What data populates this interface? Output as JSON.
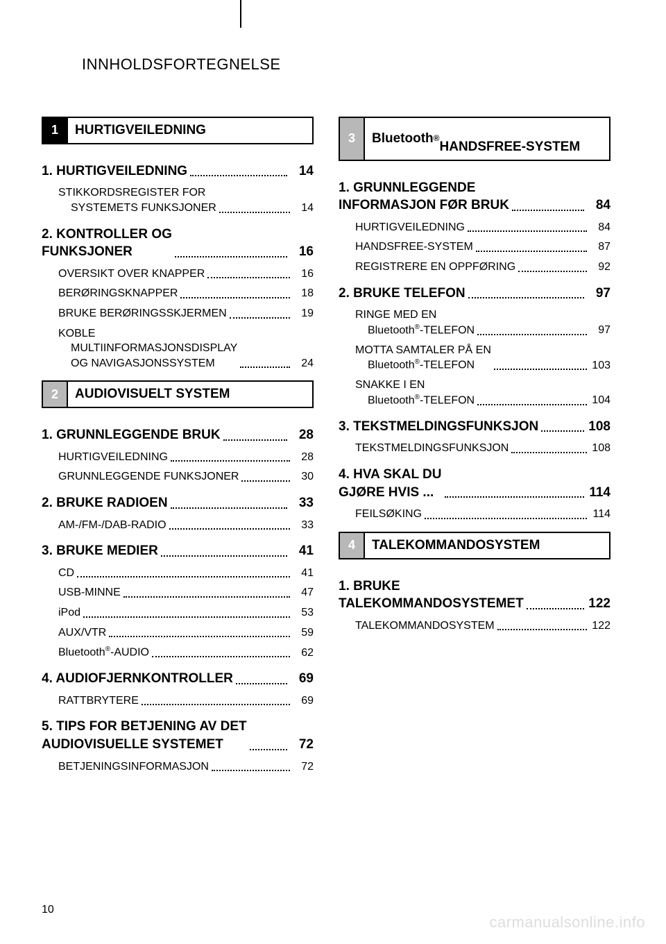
{
  "page_title": "INNHOLDSFORTEGNELSE",
  "footer_page_number": "10",
  "watermark": "carmanualsonline.info",
  "colors": {
    "text": "#000000",
    "background": "#ffffff",
    "chapter_active_bg": "#000000",
    "chapter_inactive_bg": "#b8b8b8",
    "watermark": "#dddddd"
  },
  "typography": {
    "page_title_fontsize": 22,
    "chapter_title_fontsize": 19,
    "section_fontsize": 19,
    "entry_fontsize": 16,
    "footer_fontsize": 16
  },
  "left_column": {
    "chapters": [
      {
        "number": "1",
        "active": true,
        "title": "HURTIGVEILEDNING",
        "sections": [
          {
            "label": "1. HURTIGVEILEDNING",
            "page": "14",
            "entries": [
              {
                "label": "STIKKORDSREGISTER FOR",
                "cont": "SYSTEMETS FUNKSJONER",
                "page": "14"
              }
            ]
          },
          {
            "label": "2. KONTROLLER OG",
            "label_cont": "FUNKSJONER",
            "page": "16",
            "entries": [
              {
                "label": "OVERSIKT OVER KNAPPER",
                "page": "16"
              },
              {
                "label": "BERØRINGSKNAPPER",
                "page": "18"
              },
              {
                "label": "BRUKE BERØRINGSSKJERMEN",
                "page": "19"
              },
              {
                "label": "KOBLE",
                "cont": "MULTIINFORMASJONSDISPLAY",
                "cont2": "OG NAVIGASJONSSYSTEM",
                "page": "24"
              }
            ]
          }
        ]
      },
      {
        "number": "2",
        "active": false,
        "title": "AUDIOVISUELT SYSTEM",
        "sections": [
          {
            "label": "1. GRUNNLEGGENDE BRUK",
            "page": "28",
            "entries": [
              {
                "label": "HURTIGVEILEDNING",
                "page": "28"
              },
              {
                "label": "GRUNNLEGGENDE FUNKSJONER",
                "page": "30"
              }
            ]
          },
          {
            "label": "2. BRUKE RADIOEN",
            "page": "33",
            "entries": [
              {
                "label": "AM-/FM-/DAB-RADIO",
                "page": "33"
              }
            ]
          },
          {
            "label": "3. BRUKE MEDIER",
            "page": "41",
            "entries": [
              {
                "label": "CD",
                "page": "41"
              },
              {
                "label": "USB-MINNE",
                "page": "47"
              },
              {
                "label": "iPod",
                "page": "53"
              },
              {
                "label": "AUX/VTR",
                "page": "59"
              },
              {
                "label_html": "Bluetooth<sup class=\"reg\">®</sup>-AUDIO",
                "page": "62"
              }
            ]
          },
          {
            "label": "4. AUDIOFJERNKONTROLLER",
            "page": "69",
            "entries": [
              {
                "label": "RATTBRYTERE",
                "page": "69"
              }
            ]
          },
          {
            "label": "5. TIPS FOR BETJENING AV DET",
            "label_cont": "AUDIOVISUELLE SYSTEMET",
            "page": "72",
            "entries": [
              {
                "label": "BETJENINGSINFORMASJON",
                "page": "72"
              }
            ]
          }
        ]
      }
    ]
  },
  "right_column": {
    "chapters": [
      {
        "number": "3",
        "active": false,
        "title_html": "Bluetooth<sup>®</sup><br>HANDSFREE-SYSTEM",
        "sections": [
          {
            "label": "1. GRUNNLEGGENDE",
            "label_cont": "INFORMASJON FØR BRUK",
            "page": "84",
            "entries": [
              {
                "label": "HURTIGVEILEDNING",
                "page": "84"
              },
              {
                "label": "HANDSFREE-SYSTEM",
                "page": "87"
              },
              {
                "label": "REGISTRERE EN OPPFØRING",
                "page": "92"
              }
            ]
          },
          {
            "label": "2. BRUKE TELEFON",
            "page": "97",
            "entries": [
              {
                "label": "RINGE MED EN",
                "cont_html": "Bluetooth<sup class=\"reg\">®</sup>-TELEFON",
                "page": "97"
              },
              {
                "label": "MOTTA SAMTALER PÅ EN",
                "cont_html": "Bluetooth<sup class=\"reg\">®</sup>-TELEFON",
                "page": "103"
              },
              {
                "label": "SNAKKE I EN",
                "cont_html": "Bluetooth<sup class=\"reg\">®</sup>-TELEFON",
                "page": "104"
              }
            ]
          },
          {
            "label": "3. TEKSTMELDINGSFUNKSJON",
            "page": "108",
            "entries": [
              {
                "label": "TEKSTMELDINGSFUNKSJON",
                "page": "108"
              }
            ]
          },
          {
            "label": "4. HVA SKAL DU",
            "label_cont": "GJØRE HVIS ... ",
            "page": "114",
            "entries": [
              {
                "label": "FEILSØKING",
                "page": "114"
              }
            ]
          }
        ]
      },
      {
        "number": "4",
        "active": false,
        "title": "TALEKOMMANDOSYSTEM",
        "sections": [
          {
            "label": "1. BRUKE",
            "label_cont": "TALEKOMMANDOSYSTEMET",
            "page": "122",
            "entries": [
              {
                "label": "TALEKOMMANDOSYSTEM",
                "page": "122"
              }
            ]
          }
        ]
      }
    ]
  }
}
